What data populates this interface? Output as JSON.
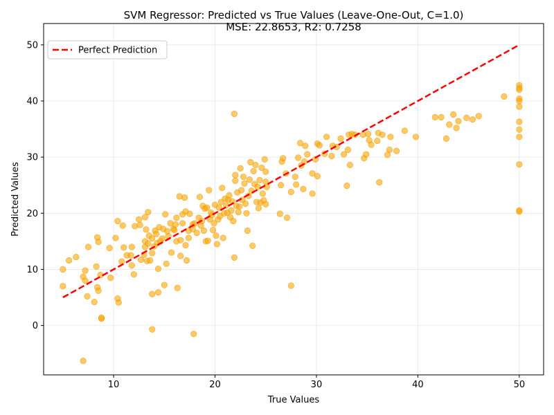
{
  "chart_data": {
    "type": "scatter",
    "title": "SVM Regressor: Predicted vs True Values (Leave-One-Out, C=1.0)",
    "subtitle": "MSE: 22.8653, R2: 0.7258",
    "xlabel": "True Values",
    "ylabel": "Predicted Values",
    "xlim": [
      3.1,
      52.4
    ],
    "ylim": [
      -8.8,
      53.8
    ],
    "xticks": [
      10,
      20,
      30,
      40,
      50
    ],
    "yticks": [
      0,
      10,
      20,
      30,
      40,
      50
    ],
    "grid": true,
    "legend_position": "top-left",
    "legend": {
      "perfect_label": "Perfect Prediction"
    },
    "colors": {
      "points": "#ffa500",
      "points_edge": "#e69500",
      "perfect_line": "#ff0000"
    },
    "perfect_line": {
      "x": [
        5,
        50
      ],
      "y": [
        5,
        50
      ]
    },
    "points": [
      [
        5.0,
        10.0
      ],
      [
        5.0,
        7.0
      ],
      [
        5.6,
        11.6
      ],
      [
        6.3,
        12.2
      ],
      [
        7.0,
        -6.3
      ],
      [
        7.0,
        8.7
      ],
      [
        7.2,
        9.8
      ],
      [
        7.2,
        8.0
      ],
      [
        7.4,
        5.2
      ],
      [
        7.5,
        14.0
      ],
      [
        8.1,
        4.2
      ],
      [
        8.3,
        10.5
      ],
      [
        8.4,
        15.7
      ],
      [
        8.4,
        6.8
      ],
      [
        8.5,
        6.2
      ],
      [
        8.5,
        14.9
      ],
      [
        8.7,
        9.0
      ],
      [
        8.8,
        1.2
      ],
      [
        8.8,
        1.4
      ],
      [
        9.6,
        13.8
      ],
      [
        9.7,
        8.5
      ],
      [
        10.2,
        15.6
      ],
      [
        10.4,
        18.6
      ],
      [
        10.4,
        4.8
      ],
      [
        10.5,
        4.1
      ],
      [
        10.8,
        11.4
      ],
      [
        10.9,
        17.8
      ],
      [
        11.0,
        13.9
      ],
      [
        11.3,
        12.5
      ],
      [
        11.7,
        12.5
      ],
      [
        11.8,
        14.0
      ],
      [
        11.8,
        10.7
      ],
      [
        12.0,
        9.1
      ],
      [
        12.1,
        17.7
      ],
      [
        12.5,
        18.9
      ],
      [
        12.6,
        17.9
      ],
      [
        12.7,
        11.7
      ],
      [
        13.0,
        12.6
      ],
      [
        13.1,
        19.3
      ],
      [
        13.1,
        15.0
      ],
      [
        13.1,
        14.0
      ],
      [
        13.2,
        17.1
      ],
      [
        13.3,
        11.5
      ],
      [
        13.4,
        20.2
      ],
      [
        13.4,
        14.6
      ],
      [
        13.5,
        16.0
      ],
      [
        13.6,
        11.6
      ],
      [
        13.8,
        12.9
      ],
      [
        13.8,
        15.5
      ],
      [
        13.8,
        5.6
      ],
      [
        13.8,
        -0.7
      ],
      [
        14.0,
        14.1
      ],
      [
        14.1,
        16.9
      ],
      [
        14.2,
        16.3
      ],
      [
        14.3,
        14.7
      ],
      [
        14.4,
        10.1
      ],
      [
        14.4,
        5.9
      ],
      [
        14.5,
        17.5
      ],
      [
        14.6,
        15.0
      ],
      [
        14.8,
        15.5
      ],
      [
        14.9,
        17.2
      ],
      [
        15.0,
        7.2
      ],
      [
        15.1,
        19.8
      ],
      [
        15.2,
        11.0
      ],
      [
        15.3,
        16.8
      ],
      [
        15.4,
        15.9
      ],
      [
        15.6,
        18.2
      ],
      [
        15.7,
        13.0
      ],
      [
        15.9,
        17.2
      ],
      [
        16.0,
        17.0
      ],
      [
        16.1,
        18.0
      ],
      [
        16.2,
        19.2
      ],
      [
        16.2,
        15.0
      ],
      [
        16.3,
        6.7
      ],
      [
        16.5,
        23.0
      ],
      [
        16.6,
        15.2
      ],
      [
        16.6,
        12.4
      ],
      [
        16.8,
        18.2
      ],
      [
        16.8,
        19.8
      ],
      [
        17.0,
        22.8
      ],
      [
        17.1,
        20.3
      ],
      [
        17.1,
        14.3
      ],
      [
        17.2,
        11.6
      ],
      [
        17.4,
        15.6
      ],
      [
        17.4,
        16.9
      ],
      [
        17.5,
        19.9
      ],
      [
        17.8,
        18.0
      ],
      [
        17.8,
        17.2
      ],
      [
        17.9,
        -1.5
      ],
      [
        18.0,
        18.2
      ],
      [
        18.2,
        16.5
      ],
      [
        18.4,
        19.2
      ],
      [
        18.5,
        22.9
      ],
      [
        18.6,
        17.8
      ],
      [
        18.7,
        18.6
      ],
      [
        18.8,
        21.3
      ],
      [
        18.9,
        16.9
      ],
      [
        19.0,
        20.8
      ],
      [
        19.1,
        15.0
      ],
      [
        19.2,
        21.0
      ],
      [
        19.3,
        15.1
      ],
      [
        19.4,
        24.1
      ],
      [
        19.5,
        18.9
      ],
      [
        19.6,
        20.1
      ],
      [
        19.7,
        19.7
      ],
      [
        19.8,
        17.0
      ],
      [
        19.9,
        18.2
      ],
      [
        20.0,
        21.5
      ],
      [
        20.1,
        16.0
      ],
      [
        20.2,
        14.5
      ],
      [
        20.3,
        18.9
      ],
      [
        20.4,
        21.0
      ],
      [
        20.5,
        19.5
      ],
      [
        20.6,
        22.0
      ],
      [
        20.7,
        24.5
      ],
      [
        20.8,
        15.6
      ],
      [
        20.9,
        20.0
      ],
      [
        21.0,
        22.6
      ],
      [
        21.1,
        21.4
      ],
      [
        21.2,
        20.1
      ],
      [
        21.3,
        22.4
      ],
      [
        21.4,
        23.2
      ],
      [
        21.5,
        19.3
      ],
      [
        21.6,
        20.5
      ],
      [
        21.7,
        22.1
      ],
      [
        21.8,
        18.6
      ],
      [
        21.9,
        37.7
      ],
      [
        21.9,
        12.1
      ],
      [
        22.0,
        25.8
      ],
      [
        22.0,
        26.8
      ],
      [
        22.1,
        21.3
      ],
      [
        22.2,
        23.7
      ],
      [
        22.3,
        20.2
      ],
      [
        22.4,
        21.2
      ],
      [
        22.5,
        28.0
      ],
      [
        22.6,
        24.1
      ],
      [
        22.7,
        22.4
      ],
      [
        22.8,
        26.5
      ],
      [
        22.9,
        25.3
      ],
      [
        23.0,
        21.7
      ],
      [
        23.1,
        20.0
      ],
      [
        23.2,
        16.9
      ],
      [
        23.3,
        23.1
      ],
      [
        23.4,
        26.0
      ],
      [
        23.5,
        29.1
      ],
      [
        23.6,
        24.0
      ],
      [
        23.7,
        14.2
      ],
      [
        23.8,
        27.5
      ],
      [
        23.9,
        25.2
      ],
      [
        24.0,
        28.6
      ],
      [
        24.1,
        22.0
      ],
      [
        24.2,
        24.7
      ],
      [
        24.3,
        20.9
      ],
      [
        24.4,
        25.9
      ],
      [
        24.5,
        21.9
      ],
      [
        24.6,
        28.1
      ],
      [
        24.7,
        23.5
      ],
      [
        24.8,
        22.3
      ],
      [
        24.9,
        29.6
      ],
      [
        25.0,
        25.6
      ],
      [
        25.0,
        21.6
      ],
      [
        25.0,
        27.4
      ],
      [
        25.1,
        24.7
      ],
      [
        26.4,
        19.9
      ],
      [
        26.5,
        25.0
      ],
      [
        26.6,
        29.2
      ],
      [
        26.7,
        29.8
      ],
      [
        27.0,
        27.1
      ],
      [
        27.1,
        19.2
      ],
      [
        27.5,
        23.8
      ],
      [
        27.5,
        7.1
      ],
      [
        27.9,
        26.5
      ],
      [
        28.0,
        25.1
      ],
      [
        28.2,
        29.9
      ],
      [
        28.4,
        32.5
      ],
      [
        28.5,
        28.5
      ],
      [
        28.7,
        24.3
      ],
      [
        28.8,
        29.2
      ],
      [
        28.9,
        32.0
      ],
      [
        29.1,
        30.5
      ],
      [
        29.6,
        23.5
      ],
      [
        29.6,
        27.1
      ],
      [
        29.9,
        29.6
      ],
      [
        30.1,
        26.6
      ],
      [
        30.1,
        32.4
      ],
      [
        30.3,
        32.1
      ],
      [
        30.8,
        30.6
      ],
      [
        31.0,
        33.6
      ],
      [
        31.5,
        30.2
      ],
      [
        31.6,
        32.0
      ],
      [
        32.0,
        31.8
      ],
      [
        32.4,
        33.3
      ],
      [
        32.7,
        30.5
      ],
      [
        33.0,
        24.9
      ],
      [
        33.1,
        31.3
      ],
      [
        33.2,
        34.0
      ],
      [
        33.3,
        28.6
      ],
      [
        33.5,
        34.1
      ],
      [
        33.8,
        34.0
      ],
      [
        34.6,
        34.0
      ],
      [
        34.7,
        29.8
      ],
      [
        34.9,
        30.5
      ],
      [
        35.1,
        34.1
      ],
      [
        35.2,
        33.0
      ],
      [
        35.4,
        32.2
      ],
      [
        36.0,
        32.9
      ],
      [
        36.1,
        34.3
      ],
      [
        36.2,
        25.5
      ],
      [
        36.5,
        34.0
      ],
      [
        37.0,
        30.4
      ],
      [
        37.2,
        31.3
      ],
      [
        37.3,
        33.6
      ],
      [
        37.9,
        31.1
      ],
      [
        38.7,
        34.7
      ],
      [
        39.8,
        33.6
      ],
      [
        41.7,
        37.1
      ],
      [
        42.3,
        37.1
      ],
      [
        42.8,
        33.3
      ],
      [
        43.1,
        35.8
      ],
      [
        43.5,
        37.6
      ],
      [
        43.8,
        35.2
      ],
      [
        44.0,
        36.4
      ],
      [
        44.8,
        37.0
      ],
      [
        45.4,
        36.7
      ],
      [
        46.0,
        37.3
      ],
      [
        48.5,
        40.8
      ],
      [
        50.0,
        42.8
      ],
      [
        50.0,
        42.3
      ],
      [
        50.0,
        42.0
      ],
      [
        50.0,
        40.4
      ],
      [
        50.0,
        40.0
      ],
      [
        50.0,
        39.0
      ],
      [
        50.0,
        36.3
      ],
      [
        50.0,
        34.9
      ],
      [
        50.0,
        33.6
      ],
      [
        50.0,
        28.7
      ],
      [
        50.0,
        20.5
      ],
      [
        50.0,
        20.3
      ]
    ]
  }
}
